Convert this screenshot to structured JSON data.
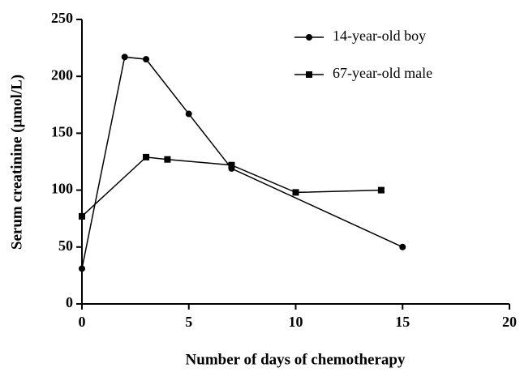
{
  "chart_data": {
    "type": "line",
    "x_label": "Number of days of chemotherapy",
    "y_label": "Serum creatinine (μmol/L)",
    "xlim": [
      0,
      20
    ],
    "xticks": [
      0,
      5,
      10,
      15,
      20
    ],
    "ylim": [
      0,
      250
    ],
    "yticks": [
      0,
      50,
      100,
      150,
      200,
      250
    ],
    "legend": "upper right",
    "series": [
      {
        "name": "14-year-old boy",
        "color": "#000000",
        "marker": "circle",
        "x": [
          0,
          2,
          3,
          5,
          7,
          15
        ],
        "values": [
          31,
          217,
          215,
          167,
          119,
          50
        ]
      },
      {
        "name": "67-year-old male",
        "color": "#000000",
        "marker": "square",
        "x": [
          0,
          3,
          4,
          7,
          10,
          14
        ],
        "values": [
          77,
          129,
          127,
          122,
          98,
          100
        ]
      }
    ]
  }
}
